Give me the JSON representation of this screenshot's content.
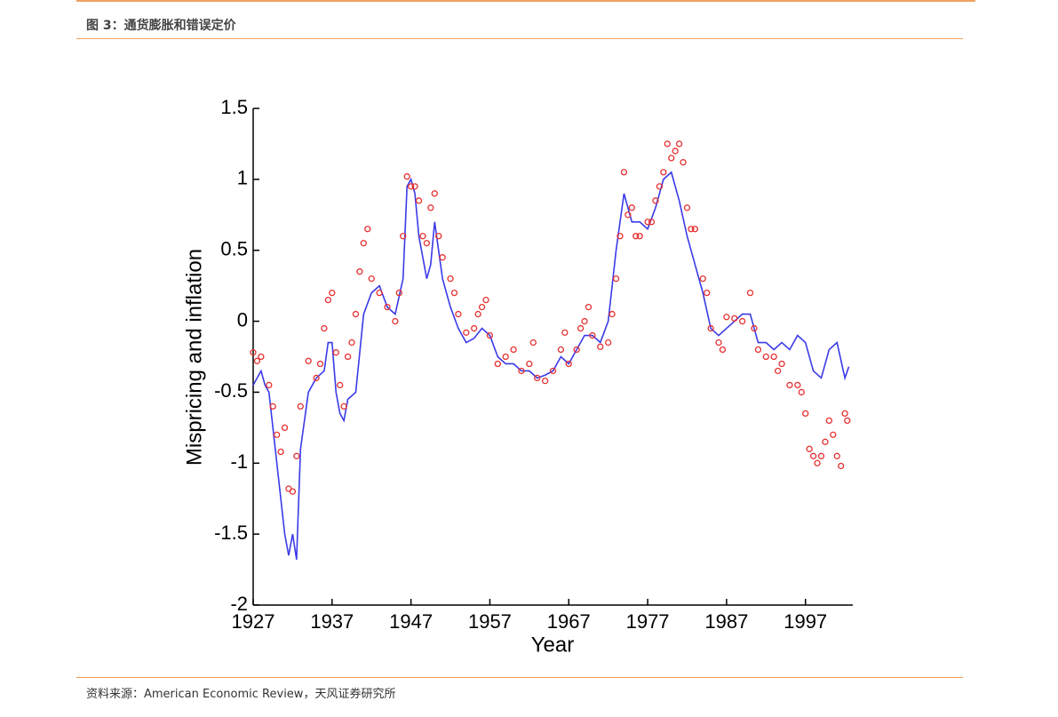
{
  "header": {
    "title": "图 3：通货膨胀和错误定价"
  },
  "footer": {
    "source": "资料来源：American Economic Review，天风证券研究所"
  },
  "chart_data": {
    "type": "line",
    "xlabel": "Year",
    "ylabel": "Mispricing and inflation",
    "xlim": [
      1927,
      2003
    ],
    "ylim": [
      -2,
      1.5
    ],
    "xticks": [
      1927,
      1937,
      1947,
      1957,
      1967,
      1977,
      1987,
      1997
    ],
    "yticks": [
      -2,
      -1.5,
      -1,
      -0.5,
      0,
      0.5,
      1,
      1.5
    ],
    "series": [
      {
        "type": "line",
        "color": "#3a3ae8",
        "x": [
          1927,
          1927.5,
          1928,
          1928.5,
          1929,
          1930,
          1931,
          1931.5,
          1932,
          1932.5,
          1933,
          1934,
          1935,
          1936,
          1936.5,
          1937,
          1937.5,
          1938,
          1938.5,
          1939,
          1940,
          1941,
          1942,
          1943,
          1944,
          1945,
          1946,
          1946.5,
          1947,
          1947.5,
          1948,
          1949,
          1949.5,
          1950,
          1951,
          1952,
          1953,
          1954,
          1955,
          1956,
          1957,
          1958,
          1959,
          1960,
          1961,
          1962,
          1963,
          1964,
          1965,
          1966,
          1967,
          1968,
          1969,
          1970,
          1971,
          1972,
          1973,
          1974,
          1975,
          1976,
          1977,
          1978,
          1979,
          1980,
          1981,
          1982,
          1983,
          1984,
          1985,
          1986,
          1987,
          1988,
          1989,
          1990,
          1991,
          1992,
          1993,
          1994,
          1995,
          1996,
          1997,
          1998,
          1999,
          2000,
          2001,
          2002,
          2002.5
        ],
        "values": [
          -0.45,
          -0.4,
          -0.35,
          -0.45,
          -0.5,
          -1.0,
          -1.5,
          -1.65,
          -1.5,
          -1.68,
          -0.9,
          -0.5,
          -0.4,
          -0.35,
          -0.15,
          -0.15,
          -0.5,
          -0.65,
          -0.7,
          -0.55,
          -0.5,
          0.05,
          0.2,
          0.25,
          0.1,
          0.05,
          0.3,
          0.95,
          1.0,
          0.9,
          0.6,
          0.3,
          0.4,
          0.7,
          0.3,
          0.1,
          -0.05,
          -0.15,
          -0.12,
          -0.05,
          -0.1,
          -0.25,
          -0.3,
          -0.3,
          -0.35,
          -0.35,
          -0.4,
          -0.38,
          -0.35,
          -0.25,
          -0.3,
          -0.2,
          -0.1,
          -0.1,
          -0.15,
          0.0,
          0.5,
          0.9,
          0.7,
          0.7,
          0.65,
          0.8,
          1.0,
          1.05,
          0.85,
          0.6,
          0.4,
          0.2,
          -0.05,
          -0.1,
          -0.05,
          0.0,
          0.05,
          0.05,
          -0.15,
          -0.15,
          -0.2,
          -0.15,
          -0.2,
          -0.1,
          -0.15,
          -0.35,
          -0.4,
          -0.2,
          -0.15,
          -0.4,
          -0.32
        ]
      },
      {
        "type": "scatter",
        "color": "#e83030",
        "x": [
          1927,
          1927.5,
          1928,
          1929,
          1929.5,
          1930,
          1930.5,
          1931,
          1931.5,
          1932,
          1932.5,
          1933,
          1934,
          1935,
          1935.5,
          1936,
          1936.5,
          1937,
          1937.5,
          1938,
          1938.5,
          1939,
          1939.5,
          1940,
          1940.5,
          1941,
          1941.5,
          1942,
          1943,
          1944,
          1945,
          1945.5,
          1946,
          1946.5,
          1947,
          1947.5,
          1948,
          1948.5,
          1949,
          1949.5,
          1950,
          1950.5,
          1951,
          1952,
          1952.5,
          1953,
          1954,
          1955,
          1955.5,
          1956,
          1956.5,
          1957,
          1958,
          1959,
          1960,
          1961,
          1962,
          1962.5,
          1963,
          1964,
          1965,
          1966,
          1966.5,
          1967,
          1968,
          1968.5,
          1969,
          1969.5,
          1970,
          1971,
          1972,
          1972.5,
          1973,
          1973.5,
          1974,
          1974.5,
          1975,
          1975.5,
          1976,
          1977,
          1977.5,
          1978,
          1978.5,
          1979,
          1979.5,
          1980,
          1980.5,
          1981,
          1981.5,
          1982,
          1982.5,
          1983,
          1984,
          1984.5,
          1985,
          1986,
          1986.5,
          1987,
          1988,
          1989,
          1990,
          1990.5,
          1991,
          1992,
          1993,
          1993.5,
          1994,
          1995,
          1996,
          1996.5,
          1997,
          1997.5,
          1998,
          1998.5,
          1999,
          1999.5,
          2000,
          2000.5,
          2001,
          2001.5,
          2002,
          2002.3
        ],
        "values": [
          -0.22,
          -0.28,
          -0.25,
          -0.45,
          -0.6,
          -0.8,
          -0.92,
          -0.75,
          -1.18,
          -1.2,
          -0.95,
          -0.6,
          -0.28,
          -0.4,
          -0.3,
          -0.05,
          0.15,
          0.2,
          -0.22,
          -0.45,
          -0.6,
          -0.25,
          -0.15,
          0.05,
          0.35,
          0.55,
          0.65,
          0.3,
          0.2,
          0.1,
          0.0,
          0.2,
          0.6,
          1.02,
          0.95,
          0.95,
          0.85,
          0.6,
          0.55,
          0.8,
          0.9,
          0.6,
          0.45,
          0.3,
          0.2,
          0.05,
          -0.08,
          -0.05,
          0.05,
          0.1,
          0.15,
          -0.1,
          -0.3,
          -0.25,
          -0.2,
          -0.35,
          -0.3,
          -0.15,
          -0.4,
          -0.42,
          -0.35,
          -0.2,
          -0.08,
          -0.3,
          -0.2,
          -0.05,
          0.0,
          0.1,
          -0.1,
          -0.18,
          -0.15,
          0.05,
          0.3,
          0.6,
          1.05,
          0.75,
          0.8,
          0.6,
          0.6,
          0.7,
          0.7,
          0.85,
          0.95,
          1.05,
          1.25,
          1.15,
          1.2,
          1.25,
          1.12,
          0.8,
          0.65,
          0.65,
          0.3,
          0.2,
          -0.05,
          -0.15,
          -0.2,
          0.03,
          0.02,
          0.0,
          0.2,
          -0.05,
          -0.2,
          -0.25,
          -0.25,
          -0.35,
          -0.3,
          -0.45,
          -0.45,
          -0.5,
          -0.65,
          -0.9,
          -0.95,
          -1.0,
          -0.95,
          -0.85,
          -0.7,
          -0.8,
          -0.95,
          -1.02,
          -0.65,
          -0.7
        ]
      }
    ]
  }
}
